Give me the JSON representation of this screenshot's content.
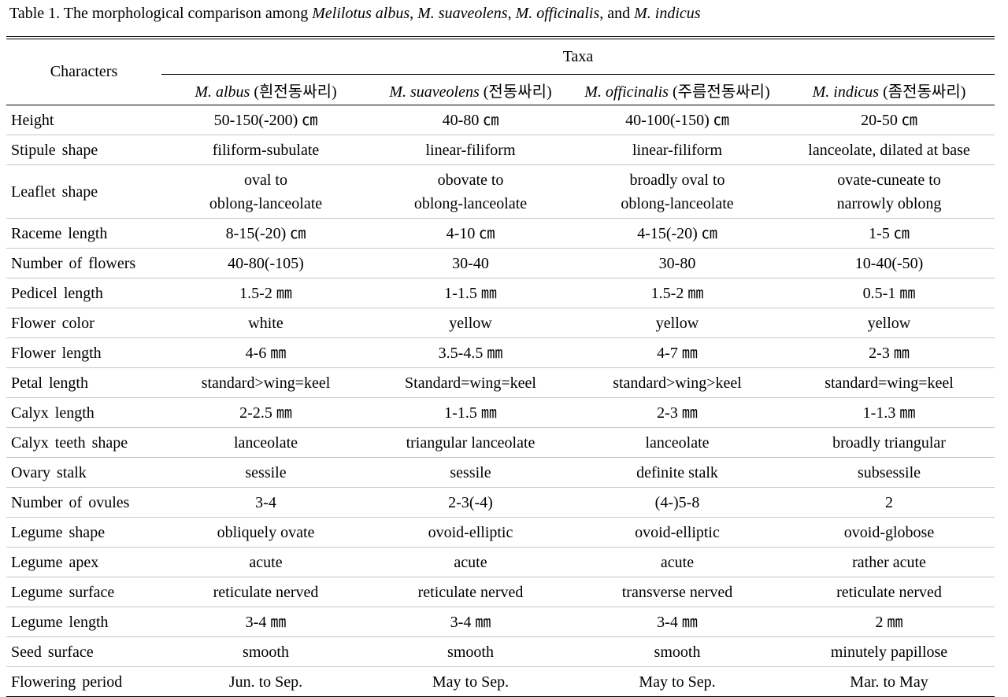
{
  "caption": {
    "prefix": "Table 1. The morphological comparison among ",
    "sp1": "Melilotus albus",
    "sep1": ", ",
    "sp2": "M. suaveolens",
    "sep2": ", ",
    "sp3": "M. officinalis",
    "sep3": ", and ",
    "sp4": "M. indicus"
  },
  "header": {
    "characters": "Characters",
    "taxa": "Taxa",
    "taxa_columns": [
      {
        "name": "M.  albus",
        "korean": " (흰전동싸리)"
      },
      {
        "name": "M.  suaveolens",
        "korean": " (전동싸리)"
      },
      {
        "name": "M.  officinalis",
        "korean": " (주름전동싸리)"
      },
      {
        "name": "M.  indicus",
        "korean": " (좀전동싸리)"
      }
    ]
  },
  "rows": [
    {
      "label": "Height",
      "cells": [
        "50-150(-200)  ㎝",
        "40-80  ㎝",
        "40-100(-150)  ㎝",
        "20-50  ㎝"
      ]
    },
    {
      "label": "Stipule shape",
      "cells": [
        "filiform-subulate",
        "linear-filiform",
        "linear-filiform",
        "lanceolate, dilated at base"
      ]
    },
    {
      "label": "Leaflet shape",
      "cells": [
        "oval  to\noblong-lanceolate",
        "obovate  to\noblong-lanceolate",
        "broadly  oval  to\noblong-lanceolate",
        "ovate-cuneate  to\nnarrowly  oblong"
      ]
    },
    {
      "label": "Raceme length",
      "cells": [
        "8-15(-20)  ㎝",
        "4-10  ㎝",
        "4-15(-20)  ㎝",
        "1-5  ㎝"
      ]
    },
    {
      "label": "Number of flowers",
      "cells": [
        "40-80(-105)",
        "30-40",
        "30-80",
        "10-40(-50)"
      ]
    },
    {
      "label": "Pedicel length",
      "cells": [
        "1.5-2  ㎜",
        "1-1.5  ㎜",
        "1.5-2  ㎜",
        "0.5-1  ㎜"
      ]
    },
    {
      "label": "Flower color",
      "cells": [
        "white",
        "yellow",
        "yellow",
        "yellow"
      ]
    },
    {
      "label": "Flower length",
      "cells": [
        "4-6  ㎜",
        "3.5-4.5  ㎜",
        "4-7  ㎜",
        "2-3  ㎜"
      ]
    },
    {
      "label": "Petal length",
      "cells": [
        "standard>wing=keel",
        "Standard=wing=keel",
        "standard>wing>keel",
        "standard=wing=keel"
      ]
    },
    {
      "label": "Calyx length",
      "cells": [
        "2-2.5  ㎜",
        "1-1.5  ㎜",
        "2-3  ㎜",
        "1-1.3  ㎜"
      ]
    },
    {
      "label": "Calyx teeth shape",
      "cells": [
        "lanceolate",
        "triangular  lanceolate",
        "lanceolate",
        "broadly  triangular"
      ]
    },
    {
      "label": "Ovary stalk",
      "cells": [
        "sessile",
        "sessile",
        "definite  stalk",
        "subsessile"
      ]
    },
    {
      "label": "Number of ovules",
      "cells": [
        "3-4",
        "2-3(-4)",
        "(4-)5-8",
        "2"
      ]
    },
    {
      "label": "Legume shape",
      "cells": [
        "obliquely  ovate",
        "ovoid-elliptic",
        "ovoid-elliptic",
        "ovoid-globose"
      ]
    },
    {
      "label": "Legume apex",
      "cells": [
        "acute",
        "acute",
        "acute",
        "rather  acute"
      ]
    },
    {
      "label": "Legume surface",
      "cells": [
        "reticulate  nerved",
        "reticulate  nerved",
        "transverse  nerved",
        "reticulate  nerved"
      ]
    },
    {
      "label": "Legume length",
      "cells": [
        "3-4  ㎜",
        "3-4  ㎜",
        "3-4  ㎜",
        "2  ㎜"
      ]
    },
    {
      "label": "Seed surface",
      "cells": [
        "smooth",
        "smooth",
        "smooth",
        "minutely  papillose"
      ]
    },
    {
      "label": "Flowering period",
      "cells": [
        "Jun.  to  Sep.",
        "May  to  Sep.",
        "May  to  Sep.",
        "Mar.  to  May"
      ]
    }
  ]
}
